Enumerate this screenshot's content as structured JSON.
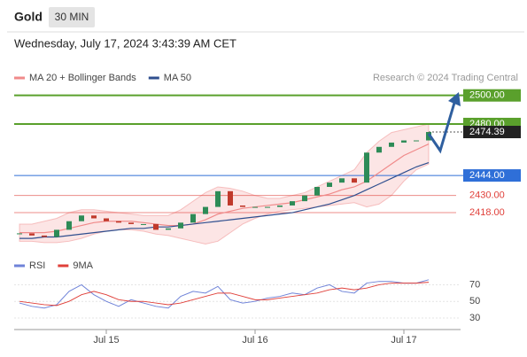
{
  "header": {
    "title": "Gold",
    "interval": "30 MIN",
    "timestamp": "Wednesday, July 17, 2024 3:43:39 AM CET",
    "source": "Research © 2024 Trading Central"
  },
  "chart_data": [
    {
      "type": "candlestick",
      "categories": [
        null,
        null,
        null,
        null,
        null,
        null,
        null,
        "Jul 15",
        null,
        null,
        null,
        null,
        null,
        null,
        null,
        null,
        null,
        null,
        null,
        "Jul 16",
        null,
        null,
        null,
        null,
        null,
        null,
        null,
        null,
        null,
        null,
        null,
        "Jul 17",
        null,
        null
      ],
      "close": [
        2403.5,
        2402,
        2401,
        2406,
        2412,
        2416,
        2414,
        2412,
        2411,
        2410,
        2410,
        2406,
        2407,
        2411,
        2417,
        2422,
        2433,
        2423,
        2422,
        2422,
        2422,
        2423,
        2426,
        2430,
        2436,
        2439,
        2442,
        2439,
        2460,
        2464,
        2467,
        2468.5,
        2468.5,
        2474.39
      ],
      "current": {
        "value": 2474.39,
        "label": "2474.39"
      },
      "band_upper": [
        2410,
        2410,
        2412,
        2414,
        2418,
        2420,
        2420,
        2419,
        2418,
        2417,
        2416,
        2416,
        2416,
        2420,
        2426,
        2432,
        2436,
        2435,
        2433,
        2430,
        2428,
        2428,
        2430,
        2432,
        2436,
        2440,
        2444,
        2448,
        2460,
        2468,
        2474,
        2476,
        2478,
        2480
      ],
      "band_lower": [
        2398,
        2398,
        2397,
        2397,
        2398,
        2400,
        2403,
        2405,
        2406,
        2406,
        2405,
        2403,
        2402,
        2400,
        2398,
        2396,
        2398,
        2404,
        2410,
        2414,
        2417,
        2419,
        2420,
        2421,
        2422,
        2423,
        2424,
        2425,
        2422,
        2424,
        2430,
        2440,
        2448,
        2452
      ],
      "series": [
        {
          "name": "MA 20 + Bollinger Bands",
          "color": "#f08a8a",
          "values": [
            2404,
            2404,
            2404,
            2405,
            2407,
            2409,
            2411,
            2412,
            2412,
            2412,
            2411,
            2410,
            2409,
            2409,
            2410,
            2413,
            2417,
            2419,
            2421,
            2422,
            2423,
            2424,
            2425,
            2427,
            2429,
            2431,
            2434,
            2436,
            2440,
            2446,
            2452,
            2458,
            2462,
            2466
          ]
        },
        {
          "name": "MA 50",
          "color": "#2f4f8f",
          "values": [
            2400,
            2400,
            2401,
            2401,
            2402,
            2403,
            2404,
            2405,
            2406,
            2407,
            2407,
            2408,
            2408,
            2409,
            2410,
            2411,
            2412,
            2413,
            2414,
            2415,
            2416,
            2417,
            2418,
            2420,
            2422,
            2424,
            2427,
            2430,
            2434,
            2438,
            2442,
            2446,
            2450,
            2453
          ]
        }
      ],
      "levels": [
        {
          "value": 2500,
          "label": "2500.00",
          "color": "#5aa02c",
          "boxed": true
        },
        {
          "value": 2480,
          "label": "2480.00",
          "color": "#5aa02c",
          "boxed": true
        },
        {
          "value": 2444,
          "label": "2444.00",
          "color": "#2f6fd8",
          "boxed": true
        },
        {
          "value": 2430,
          "label": "2430.00",
          "color": "#e0403a",
          "boxed": false
        },
        {
          "value": 2418,
          "label": "2418.00",
          "color": "#e0403a",
          "boxed": false
        }
      ],
      "ylim": [
        2392,
        2506
      ]
    },
    {
      "type": "line",
      "series": [
        {
          "name": "RSI",
          "color": "#6f83d8",
          "values": [
            48,
            44,
            42,
            46,
            62,
            70,
            58,
            50,
            44,
            52,
            48,
            44,
            42,
            56,
            62,
            60,
            68,
            52,
            48,
            50,
            54,
            56,
            60,
            58,
            66,
            70,
            62,
            60,
            72,
            74,
            74,
            72,
            72,
            76
          ]
        },
        {
          "name": "9MA",
          "color": "#e0403a",
          "values": [
            50,
            48,
            46,
            45,
            50,
            58,
            62,
            58,
            52,
            50,
            50,
            48,
            46,
            48,
            52,
            56,
            60,
            60,
            56,
            52,
            52,
            54,
            56,
            58,
            60,
            64,
            66,
            64,
            66,
            70,
            72,
            72,
            72,
            73
          ]
        }
      ],
      "ylim": [
        15,
        95
      ],
      "yticks": [
        30,
        50,
        70
      ],
      "grid": true
    }
  ]
}
